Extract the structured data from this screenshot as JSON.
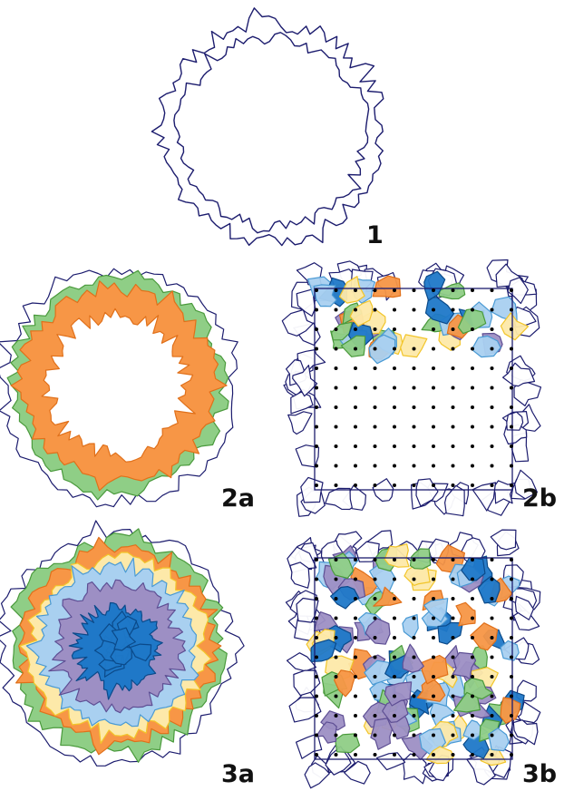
{
  "panels": [
    {
      "label": "1"
    },
    {
      "label": "2a"
    },
    {
      "label": "2b"
    },
    {
      "label": "3a"
    },
    {
      "label": "3b"
    }
  ]
}
